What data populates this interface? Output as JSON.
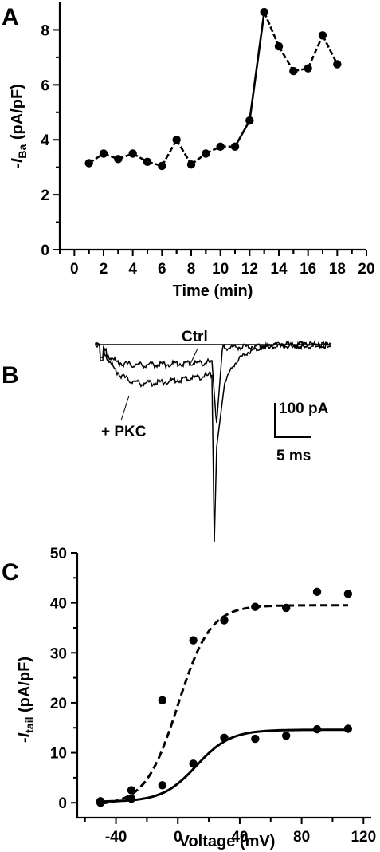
{
  "chart_data": [
    {
      "panel": "A",
      "type": "line",
      "xlabel": "Time (min)",
      "ylabel_prefix": "-I",
      "ylabel_sub": "Ba",
      "ylabel_unit": " (pA/pF)",
      "xlim": [
        -1,
        20
      ],
      "ylim": [
        0,
        9
      ],
      "xticks": [
        0,
        2,
        4,
        6,
        8,
        10,
        12,
        14,
        16,
        18,
        20
      ],
      "yticks": [
        0,
        2,
        4,
        6,
        8
      ],
      "grid": false,
      "series": [
        {
          "x": [
            1,
            2,
            3,
            4,
            5,
            6,
            7,
            8,
            9,
            10,
            11,
            12,
            13,
            14,
            15,
            16,
            17,
            18
          ],
          "y": [
            3.15,
            3.5,
            3.3,
            3.5,
            3.2,
            3.05,
            4.0,
            3.1,
            3.5,
            3.75,
            3.75,
            4.7,
            8.65,
            7.4,
            6.5,
            6.6,
            7.8,
            6.75
          ]
        }
      ]
    },
    {
      "panel": "B",
      "type": "line",
      "traces": [
        "Ctrl",
        "+ PKC"
      ],
      "scalebar": {
        "current_label": "100 pA",
        "time_label": "5 ms"
      }
    },
    {
      "panel": "C",
      "type": "scatter",
      "xlabel": "Voltage (mV)",
      "ylabel_prefix": "-I",
      "ylabel_sub": "tail",
      "ylabel_unit": " (pA/pF)",
      "xlim": [
        -65,
        125
      ],
      "ylim": [
        -3,
        50
      ],
      "xticks": [
        -40,
        0,
        40,
        80,
        120
      ],
      "yticks": [
        0,
        10,
        20,
        30,
        40,
        50
      ],
      "grid": false,
      "series": [
        {
          "style": "dashed-fit",
          "x": [
            -50,
            -30,
            -10,
            10,
            30,
            50,
            70,
            90,
            110
          ],
          "y": [
            0.3,
            2.5,
            20.5,
            32.5,
            36.5,
            39.2,
            39.0,
            42.2,
            41.8
          ],
          "fit": {
            "vmax": 40,
            "v_half": 0,
            "slope": 10.5,
            "offset": -0.5
          }
        },
        {
          "style": "solid-fit",
          "x": [
            -50,
            -30,
            -10,
            10,
            30,
            50,
            70,
            90,
            110
          ],
          "y": [
            0.0,
            0.8,
            3.5,
            7.8,
            13.0,
            12.8,
            13.4,
            14.7,
            14.8
          ],
          "fit": {
            "vmax": 14.4,
            "v_half": 12,
            "slope": 11,
            "offset": 0.2
          }
        }
      ]
    }
  ],
  "labels": {
    "a": "A",
    "b": "B",
    "c": "C"
  },
  "colors": {
    "ink": "#000000",
    "background": "#ffffff"
  }
}
